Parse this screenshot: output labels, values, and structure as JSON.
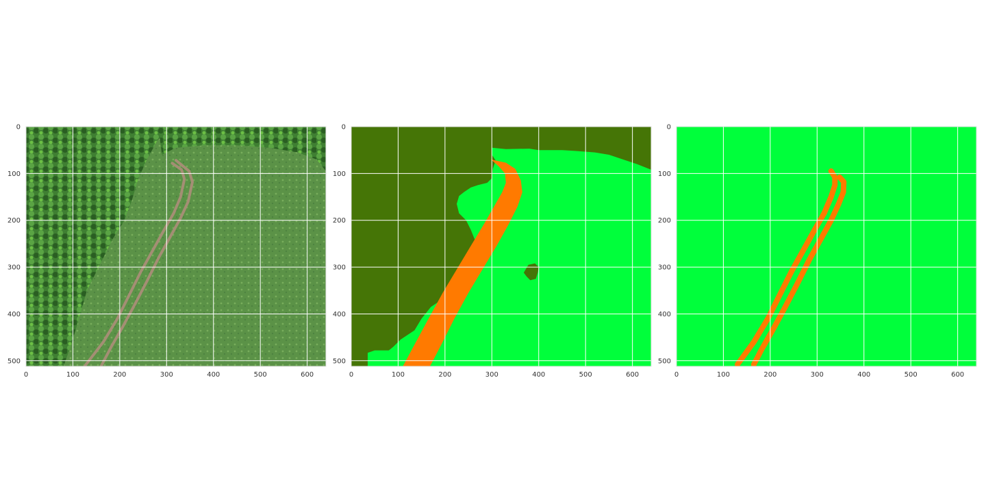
{
  "colors": {
    "tree_dark": "#2f6b26",
    "tree_mid": "#4f8f3c",
    "tree_light": "#6cbf45",
    "meadow": "#5b9247",
    "meadow_light": "#78ad5c",
    "dirt_track": "#a48e74",
    "seg_dark_green": "#457506",
    "seg_bright_green": "#00ff3b",
    "seg_orange": "#ff7a00",
    "grid": "#ffffff",
    "frame": "#e0e0e0"
  },
  "chart_data": [
    {
      "type": "image",
      "subject": "aerial-photo",
      "xlim": [
        0,
        640
      ],
      "ylim": [
        512,
        0
      ],
      "xticks": [
        0,
        100,
        200,
        300,
        400,
        500,
        600
      ],
      "yticks": [
        0,
        100,
        200,
        300,
        400,
        500
      ],
      "grid": true,
      "regions": [
        {
          "label": "trees",
          "points": [
            [
              0,
              0
            ],
            [
              300,
              0
            ],
            [
              300,
              10
            ],
            [
              280,
              30
            ],
            [
              258,
              70
            ],
            [
              240,
              110
            ],
            [
              225,
              160
            ],
            [
              210,
              200
            ],
            [
              185,
              240
            ],
            [
              160,
              290
            ],
            [
              130,
              350
            ],
            [
              110,
              420
            ],
            [
              95,
              470
            ],
            [
              80,
              512
            ],
            [
              0,
              512
            ]
          ]
        },
        {
          "label": "forest-edge-top",
          "points": [
            [
              300,
              0
            ],
            [
              640,
              0
            ],
            [
              640,
              95
            ],
            [
              620,
              70
            ],
            [
              580,
              55
            ],
            [
              520,
              45
            ],
            [
              450,
              40
            ],
            [
              380,
              40
            ],
            [
              320,
              45
            ],
            [
              290,
              60
            ],
            [
              285,
              20
            ]
          ]
        }
      ],
      "tracks": [
        {
          "label": "left-rut",
          "points": [
            [
              312,
              78
            ],
            [
              332,
              92
            ],
            [
              338,
              112
            ],
            [
              330,
              150
            ],
            [
              315,
              185
            ],
            [
              295,
              220
            ],
            [
              270,
              265
            ],
            [
              245,
              310
            ],
            [
              220,
              360
            ],
            [
              195,
              410
            ],
            [
              165,
              460
            ],
            [
              125,
              512
            ]
          ]
        },
        {
          "label": "right-rut",
          "points": [
            [
              320,
              72
            ],
            [
              348,
              95
            ],
            [
              355,
              118
            ],
            [
              346,
              160
            ],
            [
              330,
              195
            ],
            [
              308,
              235
            ],
            [
              283,
              280
            ],
            [
              258,
              330
            ],
            [
              232,
              380
            ],
            [
              205,
              430
            ],
            [
              182,
              470
            ],
            [
              160,
              512
            ]
          ]
        }
      ]
    },
    {
      "type": "image",
      "subject": "segmentation-mask",
      "xlim": [
        0,
        640
      ],
      "ylim": [
        512,
        0
      ],
      "xticks": [
        0,
        100,
        200,
        300,
        400,
        500,
        600
      ],
      "yticks": [
        0,
        100,
        200,
        300,
        400,
        500
      ],
      "grid": true,
      "regions": [
        {
          "label": "bright-green",
          "points": [
            [
              300,
              50
            ],
            [
              300,
              45
            ],
            [
              330,
              48
            ],
            [
              380,
              47
            ],
            [
              400,
              50
            ],
            [
              450,
              50
            ],
            [
              480,
              52
            ],
            [
              520,
              55
            ],
            [
              550,
              60
            ],
            [
              580,
              70
            ],
            [
              610,
              80
            ],
            [
              640,
              92
            ],
            [
              640,
              512
            ],
            [
              35,
              512
            ],
            [
              35,
              483
            ],
            [
              50,
              478
            ],
            [
              80,
              478
            ],
            [
              90,
              470
            ],
            [
              105,
              455
            ],
            [
              135,
              435
            ],
            [
              150,
              410
            ],
            [
              170,
              385
            ],
            [
              200,
              365
            ],
            [
              215,
              340
            ],
            [
              230,
              320
            ],
            [
              240,
              295
            ],
            [
              260,
              270
            ],
            [
              265,
              245
            ],
            [
              255,
              220
            ],
            [
              245,
              200
            ],
            [
              230,
              185
            ],
            [
              225,
              165
            ],
            [
              230,
              148
            ],
            [
              240,
              140
            ],
            [
              255,
              130
            ],
            [
              270,
              125
            ],
            [
              290,
              120
            ],
            [
              300,
              110
            ],
            [
              302,
              90
            ],
            [
              308,
              72
            ],
            [
              300,
              60
            ]
          ]
        },
        {
          "label": "dark-hole",
          "points": [
            [
              372,
              305
            ],
            [
              378,
              295
            ],
            [
              392,
              292
            ],
            [
              400,
              300
            ],
            [
              398,
              312
            ],
            [
              394,
              325
            ],
            [
              382,
              328
            ],
            [
              374,
              320
            ],
            [
              368,
              312
            ]
          ]
        },
        {
          "label": "orange-road",
          "points": [
            [
              298,
              70
            ],
            [
              330,
              77
            ],
            [
              350,
              90
            ],
            [
              362,
              115
            ],
            [
              365,
              140
            ],
            [
              355,
              170
            ],
            [
              335,
              210
            ],
            [
              310,
              255
            ],
            [
              280,
              305
            ],
            [
              250,
              355
            ],
            [
              220,
              410
            ],
            [
              195,
              460
            ],
            [
              168,
              512
            ],
            [
              110,
              512
            ],
            [
              138,
              460
            ],
            [
              165,
              410
            ],
            [
              195,
              355
            ],
            [
              225,
              305
            ],
            [
              255,
              255
            ],
            [
              282,
              210
            ],
            [
              305,
              170
            ],
            [
              322,
              140
            ],
            [
              330,
              120
            ],
            [
              328,
              100
            ],
            [
              315,
              85
            ]
          ]
        }
      ]
    },
    {
      "type": "image",
      "subject": "segmentation-mask",
      "xlim": [
        0,
        640
      ],
      "ylim": [
        512,
        0
      ],
      "xticks": [
        0,
        100,
        200,
        300,
        400,
        500,
        600
      ],
      "yticks": [
        0,
        100,
        200,
        300,
        400,
        500
      ],
      "grid": true,
      "regions": [
        {
          "label": "bright-green",
          "points": [
            [
              0,
              0
            ],
            [
              640,
              0
            ],
            [
              640,
              512
            ],
            [
              0,
              512
            ]
          ]
        }
      ],
      "tracks": [
        {
          "label": "left-rut",
          "points": [
            [
              330,
              95
            ],
            [
              338,
              108
            ],
            [
              338,
              125
            ],
            [
              330,
              150
            ],
            [
              315,
              185
            ],
            [
              295,
              220
            ],
            [
              270,
              265
            ],
            [
              245,
              310
            ],
            [
              220,
              360
            ],
            [
              195,
              410
            ],
            [
              165,
              460
            ],
            [
              130,
              508
            ]
          ]
        },
        {
          "label": "right-rut",
          "points": [
            [
              348,
              108
            ],
            [
              357,
              118
            ],
            [
              356,
              140
            ],
            [
              346,
              165
            ],
            [
              330,
              200
            ],
            [
              308,
              240
            ],
            [
              283,
              285
            ],
            [
              258,
              335
            ],
            [
              232,
              385
            ],
            [
              205,
              435
            ],
            [
              182,
              475
            ],
            [
              165,
              508
            ]
          ]
        }
      ]
    }
  ]
}
